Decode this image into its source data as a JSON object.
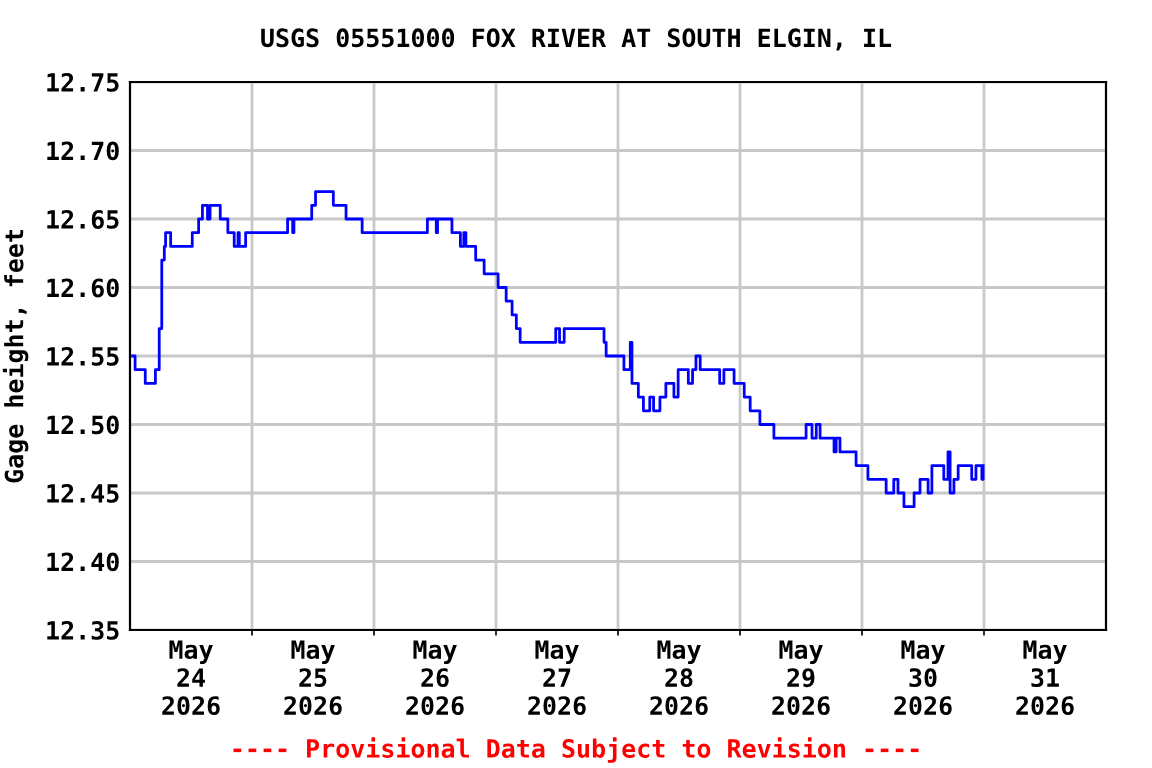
{
  "chart_data": {
    "type": "step",
    "title": "USGS 05551000 FOX RIVER AT SOUTH ELGIN, IL",
    "ylabel": "Gage height, feet",
    "annotations": [
      "---- Provisional Data Subject to Revision ----"
    ],
    "xlim": [
      "2026-05-24T00:00",
      "2026-06-01T00:00"
    ],
    "xticks": [
      {
        "value": "2026-05-24T12:00",
        "label": "May\n24\n2026"
      },
      {
        "value": "2026-05-25T12:00",
        "label": "May\n25\n2026"
      },
      {
        "value": "2026-05-26T12:00",
        "label": "May\n26\n2026"
      },
      {
        "value": "2026-05-27T12:00",
        "label": "May\n27\n2026"
      },
      {
        "value": "2026-05-28T12:00",
        "label": "May\n28\n2026"
      },
      {
        "value": "2026-05-29T12:00",
        "label": "May\n29\n2026"
      },
      {
        "value": "2026-05-30T12:00",
        "label": "May\n30\n2026"
      },
      {
        "value": "2026-05-31T12:00",
        "label": "May\n31\n2026"
      },
      {
        "value": "2026-05-25T00:00",
        "label": null
      },
      {
        "value": "2026-05-26T00:00",
        "label": null
      },
      {
        "value": "2026-05-27T00:00",
        "label": null
      },
      {
        "value": "2026-05-28T00:00",
        "label": null
      },
      {
        "value": "2026-05-29T00:00",
        "label": null
      },
      {
        "value": "2026-05-30T00:00",
        "label": null
      },
      {
        "value": "2026-05-31T00:00",
        "label": null
      }
    ],
    "ylim": [
      12.35,
      12.75
    ],
    "yticks": [
      12.35,
      {
        "value": 12.4,
        "label": "12.40"
      },
      12.45,
      {
        "value": 12.5,
        "label": "12.50"
      },
      12.55,
      {
        "value": 12.6,
        "label": "12.60"
      },
      12.65,
      {
        "value": 12.7,
        "label": "12.70"
      },
      12.75
    ],
    "grid": true,
    "legend": false,
    "series": [
      {
        "color": "#0000ff",
        "x": [
          "2026-05-24T00:30",
          "2026-05-24T01:00",
          "2026-05-24T03:00",
          "2026-05-24T05:00",
          "2026-05-24T05:45",
          "2026-05-24T06:15",
          "2026-05-24T06:45",
          "2026-05-24T07:00",
          "2026-05-24T08:00",
          "2026-05-24T11:45",
          "2026-05-24T12:15",
          "2026-05-24T13:30",
          "2026-05-24T14:15",
          "2026-05-24T15:15",
          "2026-05-24T15:45",
          "2026-05-24T17:00",
          "2026-05-24T17:45",
          "2026-05-24T19:15",
          "2026-05-24T20:30",
          "2026-05-24T21:15",
          "2026-05-24T21:30",
          "2026-05-24T22:45",
          "2026-05-25T06:45",
          "2026-05-25T07:00",
          "2026-05-25T08:00",
          "2026-05-25T08:15",
          "2026-05-25T11:00",
          "2026-05-25T11:45",
          "2026-05-25T12:30",
          "2026-05-25T16:00",
          "2026-05-25T18:30",
          "2026-05-25T21:40",
          "2026-05-26T10:15",
          "2026-05-26T10:30",
          "2026-05-26T12:15",
          "2026-05-26T12:30",
          "2026-05-26T15:00",
          "2026-05-26T15:20",
          "2026-05-26T17:00",
          "2026-05-26T17:40",
          "2026-05-26T18:05",
          "2026-05-26T20:00",
          "2026-05-26T21:40",
          "2026-05-27T00:25",
          "2026-05-27T02:00",
          "2026-05-27T03:10",
          "2026-05-27T04:00",
          "2026-05-27T04:45",
          "2026-05-27T11:25",
          "2026-05-27T11:45",
          "2026-05-27T12:30",
          "2026-05-27T13:25",
          "2026-05-27T20:30",
          "2026-05-27T21:15",
          "2026-05-27T21:40",
          "2026-05-28T01:10",
          "2026-05-28T02:25",
          "2026-05-28T02:45",
          "2026-05-28T04:00",
          "2026-05-28T05:00",
          "2026-05-28T06:15",
          "2026-05-28T07:00",
          "2026-05-28T08:15",
          "2026-05-28T09:25",
          "2026-05-28T11:00",
          "2026-05-28T11:50",
          "2026-05-28T13:50",
          "2026-05-28T14:40",
          "2026-05-28T15:20",
          "2026-05-28T16:10",
          "2026-05-28T20:00",
          "2026-05-28T20:50",
          "2026-05-28T22:50",
          "2026-05-29T00:50",
          "2026-05-29T02:00",
          "2026-05-29T03:55",
          "2026-05-29T06:40",
          "2026-05-29T13:00",
          "2026-05-29T14:10",
          "2026-05-29T15:00",
          "2026-05-29T15:45",
          "2026-05-29T18:30",
          "2026-05-29T18:55",
          "2026-05-29T19:40",
          "2026-05-29T22:50",
          "2026-05-30T01:10",
          "2026-05-30T04:45",
          "2026-05-30T06:15",
          "2026-05-30T07:05",
          "2026-05-30T08:15",
          "2026-05-30T10:15",
          "2026-05-30T11:25",
          "2026-05-30T13:00",
          "2026-05-30T13:45",
          "2026-05-30T16:05",
          "2026-05-30T16:55",
          "2026-05-30T17:20",
          "2026-05-30T18:05",
          "2026-05-30T18:55",
          "2026-05-30T21:35",
          "2026-05-30T22:25",
          "2026-05-30T23:35",
          "2026-05-30T23:50"
        ],
        "values": [
          12.55,
          12.54,
          12.53,
          12.54,
          12.57,
          12.62,
          12.63,
          12.64,
          12.63,
          12.63,
          12.64,
          12.65,
          12.66,
          12.65,
          12.66,
          12.66,
          12.65,
          12.64,
          12.63,
          12.64,
          12.63,
          12.64,
          12.64,
          12.65,
          12.64,
          12.65,
          12.65,
          12.66,
          12.67,
          12.66,
          12.65,
          12.64,
          12.64,
          12.65,
          12.64,
          12.65,
          12.65,
          12.64,
          12.63,
          12.64,
          12.63,
          12.62,
          12.61,
          12.6,
          12.59,
          12.58,
          12.57,
          12.56,
          12.56,
          12.57,
          12.56,
          12.57,
          12.57,
          12.56,
          12.55,
          12.54,
          12.56,
          12.53,
          12.52,
          12.51,
          12.52,
          12.51,
          12.52,
          12.53,
          12.52,
          12.54,
          12.53,
          12.54,
          12.55,
          12.54,
          12.53,
          12.54,
          12.53,
          12.52,
          12.51,
          12.5,
          12.49,
          12.5,
          12.49,
          12.5,
          12.49,
          12.48,
          12.49,
          12.48,
          12.47,
          12.46,
          12.45,
          12.46,
          12.45,
          12.44,
          12.45,
          12.46,
          12.45,
          12.47,
          12.46,
          12.48,
          12.45,
          12.46,
          12.47,
          12.46,
          12.47,
          12.46,
          12.47
        ]
      }
    ]
  }
}
